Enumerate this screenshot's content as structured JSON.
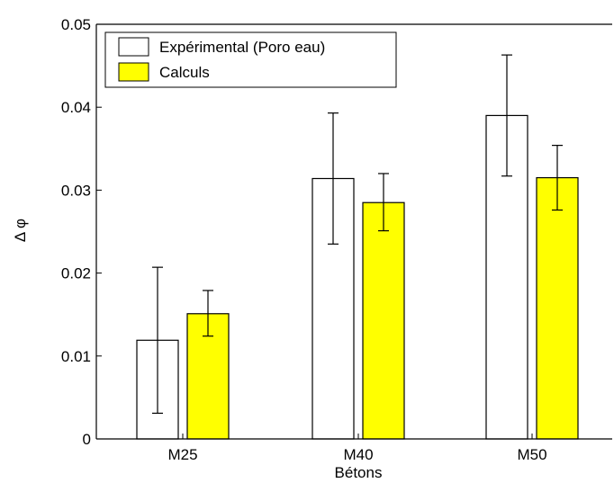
{
  "chart_data": {
    "type": "bar",
    "title": "",
    "xlabel": "Bétons",
    "ylabel": "Δ φ",
    "categories": [
      "M25",
      "M40",
      "M50"
    ],
    "ylim": [
      0,
      0.05
    ],
    "yticks": [
      "0",
      "0.01",
      "0.02",
      "0.03",
      "0.04",
      "0.05"
    ],
    "ytick_values": [
      0,
      0.01,
      0.02,
      0.03,
      0.04,
      0.05
    ],
    "grid": false,
    "legend_position": "top-left",
    "series": [
      {
        "name": "Expérimental (Poro eau)",
        "color": "#ffffff",
        "values": [
          0.0119,
          0.0314,
          0.039
        ],
        "error_low": [
          0.0031,
          0.0235,
          0.0317
        ],
        "error_high": [
          0.0207,
          0.0393,
          0.0463
        ]
      },
      {
        "name": "Calculs",
        "color": "#ffff00",
        "values": [
          0.0151,
          0.0285,
          0.0315
        ],
        "error_low": [
          0.0124,
          0.0251,
          0.0276
        ],
        "error_high": [
          0.0179,
          0.032,
          0.0354
        ]
      }
    ]
  }
}
